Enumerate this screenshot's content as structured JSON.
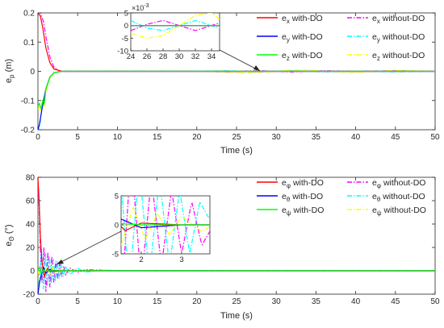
{
  "chart_data": [
    {
      "type": "line",
      "ylabel_main": "e",
      "ylabel_sub": "p",
      "ylabel_unit": "(m)",
      "xlabel": "Time (s)",
      "xlim": [
        0,
        50
      ],
      "ylim": [
        -0.2,
        0.2
      ],
      "xticks": [
        "0",
        "5",
        "10",
        "15",
        "20",
        "25",
        "30",
        "35",
        "40",
        "45",
        "50"
      ],
      "yticks": [
        "-0.2",
        "-0.1",
        "0",
        "0.1",
        "0.2"
      ],
      "legend_position": "top-right",
      "legend": [
        {
          "main": "e",
          "sub": "x",
          "rest": " with-DO",
          "color": "#ff0000",
          "dash": "solid"
        },
        {
          "main": "e",
          "sub": "x",
          "rest": " without-DO",
          "color": "#ff00ff",
          "dash": "dashdot"
        },
        {
          "main": "e",
          "sub": "y",
          "rest": " with-DO",
          "color": "#0000ff",
          "dash": "solid"
        },
        {
          "main": "e",
          "sub": "y",
          "rest": " without-DO",
          "color": "#00ffff",
          "dash": "dashdot"
        },
        {
          "main": "e",
          "sub": "z",
          "rest": " with-DO",
          "color": "#00ff00",
          "dash": "solid"
        },
        {
          "main": "e",
          "sub": "z",
          "rest": " without-DO",
          "color": "#ffff00",
          "dash": "dashdot"
        }
      ],
      "inset": {
        "exponent_label": "×10",
        "exponent_power": "-3",
        "xlim": [
          24,
          35
        ],
        "ylim": [
          -10,
          5
        ],
        "xticks": [
          "24",
          "26",
          "28",
          "30",
          "32",
          "34"
        ],
        "yticks": [
          "5",
          "0",
          "-5",
          "-10"
        ]
      },
      "series": [
        {
          "key": "ex_DO",
          "x": [
            0,
            0.3,
            0.6,
            1,
            1.5,
            2,
            3,
            5,
            10,
            50
          ],
          "y": [
            0.2,
            0.19,
            0.15,
            0.08,
            0.03,
            0.008,
            0,
            0,
            0,
            0
          ]
        },
        {
          "key": "ex_noDO",
          "x": [
            0,
            0.3,
            0.7,
            1,
            1.5,
            2,
            2.5,
            3,
            5,
            10,
            20,
            24,
            26,
            28,
            30,
            32,
            34,
            36,
            40,
            45,
            50
          ],
          "y": [
            0.21,
            0.2,
            0.17,
            0.12,
            0.05,
            0.015,
            0.004,
            0,
            0,
            0,
            0,
            -0.002,
            0.0005,
            0.002,
            0,
            -0.002,
            0,
            0.002,
            0,
            0.002,
            0
          ]
        },
        {
          "key": "ey_DO",
          "x": [
            0,
            0.2,
            0.5,
            1,
            1.5,
            2,
            3,
            5,
            50
          ],
          "y": [
            -0.2,
            -0.18,
            -0.13,
            -0.06,
            -0.02,
            -0.005,
            0,
            0,
            0
          ]
        },
        {
          "key": "ey_noDO",
          "x": [
            0,
            0.2,
            0.5,
            1,
            1.5,
            2,
            3,
            5,
            10,
            20,
            24,
            26,
            28,
            30,
            32,
            34,
            36,
            40,
            45,
            50
          ],
          "y": [
            -0.21,
            -0.19,
            -0.13,
            -0.06,
            -0.02,
            -0.005,
            0,
            0,
            0,
            0,
            0.002,
            -0.001,
            -0.002,
            0,
            0.002,
            0,
            -0.002,
            0,
            -0.002,
            0
          ]
        },
        {
          "key": "ez_DO",
          "x": [
            0,
            0.2,
            0.4,
            0.6,
            0.8,
            1,
            1.5,
            2,
            3,
            5,
            50
          ],
          "y": [
            -0.12,
            -0.11,
            -0.13,
            -0.1,
            -0.11,
            -0.06,
            -0.02,
            -0.005,
            0,
            0,
            0
          ]
        },
        {
          "key": "ez_noDO",
          "x": [
            0,
            0.2,
            0.4,
            0.6,
            0.8,
            1,
            1.5,
            2,
            3,
            5,
            10,
            20,
            24,
            26,
            28,
            30,
            32,
            34,
            36,
            40,
            45,
            50
          ],
          "y": [
            -0.13,
            -0.12,
            -0.14,
            -0.11,
            -0.12,
            -0.07,
            -0.025,
            -0.006,
            0,
            0,
            0,
            0,
            -0.003,
            -0.005,
            -0.004,
            0,
            0.004,
            0.005,
            0,
            -0.004,
            0.003,
            0
          ]
        }
      ]
    },
    {
      "type": "line",
      "ylabel_main": "e",
      "ylabel_sub": "Θ",
      "ylabel_unit": "(°)",
      "xlabel": "Time (s)",
      "xlim": [
        0,
        50
      ],
      "ylim": [
        -20,
        80
      ],
      "xticks": [
        "0",
        "5",
        "10",
        "15",
        "20",
        "25",
        "30",
        "35",
        "40",
        "45",
        "50"
      ],
      "yticks": [
        "-20",
        "0",
        "20",
        "40",
        "60",
        "80"
      ],
      "legend_position": "top-right",
      "legend": [
        {
          "main": "e",
          "sub": "φ",
          "rest": " with-DO",
          "color": "#ff0000",
          "dash": "solid"
        },
        {
          "main": "e",
          "sub": "φ",
          "rest": " without-DO",
          "color": "#ff00ff",
          "dash": "dashdot"
        },
        {
          "main": "e",
          "sub": "θ",
          "rest": " with-DO",
          "color": "#0000ff",
          "dash": "solid"
        },
        {
          "main": "e",
          "sub": "θ",
          "rest": " without-DO",
          "color": "#00ffff",
          "dash": "dashdot"
        },
        {
          "main": "e",
          "sub": "ψ",
          "rest": " with-DO",
          "color": "#00ff00",
          "dash": "solid"
        },
        {
          "main": "e",
          "sub": "ψ",
          "rest": " without-DO",
          "color": "#ffff00",
          "dash": "dashdot"
        }
      ],
      "inset": {
        "xlim": [
          1.5,
          3.7
        ],
        "ylim": [
          -5,
          5
        ],
        "xticks": [
          "2",
          "3"
        ],
        "yticks": [
          "5",
          "0",
          "-5"
        ]
      },
      "series": [
        {
          "key": "ephi_DO",
          "x": [
            0,
            0.15,
            0.3,
            0.5,
            0.8,
            1.2,
            1.6,
            2,
            3,
            5,
            50
          ],
          "y": [
            80,
            60,
            30,
            8,
            -5,
            2,
            -1,
            0.3,
            0,
            0,
            0
          ]
        },
        {
          "key": "ephi_noDO",
          "x": [
            0,
            0.15,
            0.3,
            0.5,
            0.75,
            1,
            1.25,
            1.5,
            1.75,
            2,
            2.25,
            2.5,
            2.75,
            3,
            3.25,
            3.5,
            4,
            5,
            6,
            8,
            10,
            15,
            20,
            50
          ],
          "y": [
            75,
            55,
            20,
            -10,
            20,
            -18,
            16,
            -14,
            12,
            -10,
            8,
            -7,
            6,
            -5,
            4,
            -3.5,
            2.5,
            -1.5,
            1,
            0.5,
            0.2,
            0,
            0,
            0
          ]
        },
        {
          "key": "etheta_DO",
          "x": [
            0,
            0.2,
            0.4,
            0.7,
            1,
            1.5,
            2,
            3,
            5,
            50
          ],
          "y": [
            -20,
            -10,
            -4,
            3,
            -2,
            1,
            -0.5,
            0,
            0,
            0
          ]
        },
        {
          "key": "etheta_noDO",
          "x": [
            0,
            0.2,
            0.45,
            0.7,
            0.95,
            1.2,
            1.45,
            1.7,
            1.95,
            2.2,
            2.45,
            2.7,
            2.95,
            3.2,
            3.45,
            4,
            5,
            6,
            8,
            10,
            50
          ],
          "y": [
            -20,
            -5,
            18,
            -16,
            15,
            -13,
            12,
            -11,
            10,
            -9,
            8,
            -7,
            6,
            -5,
            4,
            -3,
            2,
            -1.2,
            0.6,
            0.2,
            0
          ]
        },
        {
          "key": "epsi_DO",
          "x": [
            0,
            0.2,
            0.4,
            0.7,
            1,
            1.5,
            2,
            3,
            5,
            50
          ],
          "y": [
            0,
            3,
            -2,
            1,
            -0.5,
            0.2,
            0,
            0,
            0,
            0
          ]
        },
        {
          "key": "epsi_noDO",
          "x": [
            0,
            0.3,
            0.6,
            0.9,
            1.2,
            1.5,
            1.8,
            2.1,
            2.4,
            2.7,
            3,
            3.5,
            4,
            5,
            6,
            8,
            10,
            50
          ],
          "y": [
            0,
            -8,
            6,
            -5,
            4,
            -3.5,
            3,
            -2.5,
            2,
            -1.8,
            1.5,
            -1.2,
            1,
            -0.6,
            0.4,
            0.2,
            0,
            0
          ]
        }
      ]
    }
  ]
}
